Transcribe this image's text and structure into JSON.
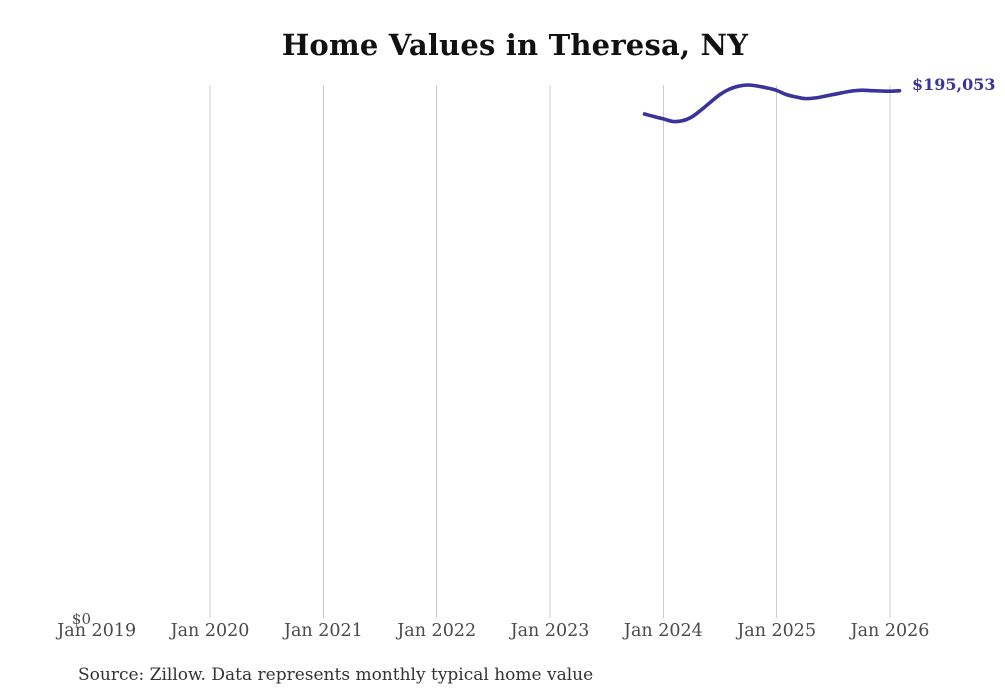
{
  "chart_data": {
    "type": "line",
    "title": "Home Values in Theresa, NY",
    "x_tick_labels": [
      "Jan 2019",
      "Jan 2020",
      "Jan 2021",
      "Jan 2022",
      "Jan 2023",
      "Jan 2024",
      "Jan 2025",
      "Jan 2026"
    ],
    "y_zero_label": "$0",
    "end_label": "$195,053",
    "latest_value": 195053,
    "line_color": "#39339b",
    "gridline_color": "#cbcbcb",
    "grid": "vertical-only",
    "legend": "none",
    "ylim": [
      0,
      197200
    ],
    "series": [
      {
        "name": "Monthly typical home value",
        "x": [
          "2023-11",
          "2023-12",
          "2024-01",
          "2024-02",
          "2024-03",
          "2024-04",
          "2024-05",
          "2024-06",
          "2024-07",
          "2024-08",
          "2024-09",
          "2024-10",
          "2024-11",
          "2024-12",
          "2025-01",
          "2025-02",
          "2025-03",
          "2025-04",
          "2025-05",
          "2025-06",
          "2025-07",
          "2025-08",
          "2025-09",
          "2025-10",
          "2025-11",
          "2025-12",
          "2026-01",
          "2026-02"
        ],
        "values": [
          186500,
          185600,
          184700,
          183800,
          184000,
          185400,
          188000,
          190900,
          193700,
          195700,
          196800,
          197200,
          196800,
          196100,
          195200,
          193700,
          192800,
          192200,
          192400,
          193000,
          193700,
          194400,
          195000,
          195300,
          195100,
          195000,
          194900,
          195053
        ]
      }
    ]
  },
  "footer": {
    "source_text": "Source: Zillow. Data represents monthly typical home value"
  }
}
